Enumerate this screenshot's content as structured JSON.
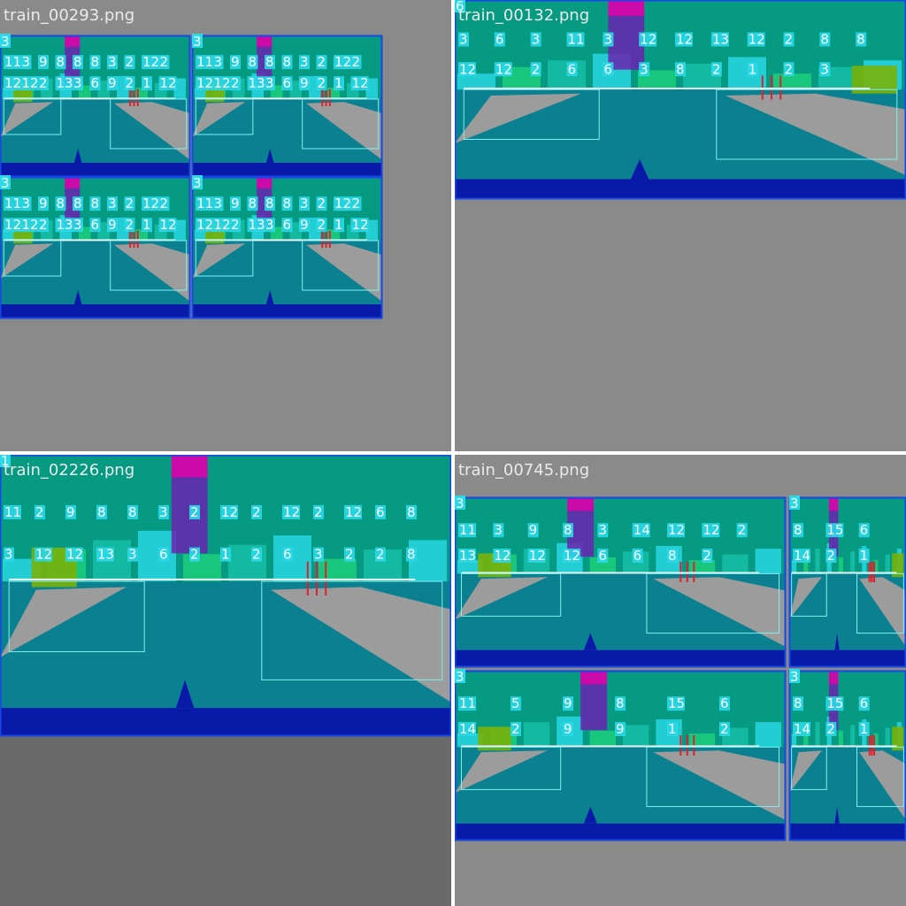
{
  "tiles": [
    {
      "filename": "train_00293.png",
      "frames": [
        {
          "tag": "3",
          "labels": [
            "11",
            "3",
            "9",
            "8",
            "8",
            "8",
            "3",
            "2",
            "12",
            "2",
            "12",
            "12",
            "2",
            "13",
            "3",
            "6",
            "9",
            "2",
            "1",
            "12"
          ]
        },
        {
          "tag": "3",
          "labels": [
            "11",
            "3",
            "9",
            "8",
            "8",
            "8",
            "3",
            "2",
            "12",
            "2",
            "12",
            "12",
            "2",
            "13",
            "3",
            "6",
            "9",
            "2",
            "1",
            "12"
          ]
        },
        {
          "tag": "3",
          "labels": [
            "11",
            "3",
            "9",
            "8",
            "8",
            "8",
            "3",
            "2",
            "12",
            "2",
            "12",
            "12",
            "2",
            "13",
            "3",
            "6",
            "9",
            "2",
            "1",
            "12"
          ]
        },
        {
          "tag": "3",
          "labels": [
            "11",
            "3",
            "9",
            "8",
            "8",
            "8",
            "3",
            "2",
            "12",
            "2",
            "12",
            "12",
            "2",
            "13",
            "3",
            "6",
            "9",
            "2",
            "1",
            "12"
          ]
        }
      ]
    },
    {
      "filename": "train_00132.png",
      "frames": [
        {
          "tag": "6",
          "labels": [
            "3",
            "6",
            "3",
            "11",
            "3",
            "12",
            "12",
            "13",
            "12",
            "2",
            "8",
            "8",
            "12",
            "12",
            "2",
            "6",
            "6",
            "3",
            "8",
            "2",
            "1",
            "2",
            "3"
          ]
        }
      ]
    },
    {
      "filename": "train_02226.png",
      "frames": [
        {
          "tag": "1",
          "labels": [
            "11",
            "2",
            "9",
            "8",
            "8",
            "3",
            "2",
            "12",
            "2",
            "12",
            "2",
            "12",
            "6",
            "8",
            "3",
            "12",
            "12",
            "13",
            "3",
            "6",
            "2",
            "1",
            "2",
            "6",
            "3",
            "2",
            "2",
            "8"
          ]
        }
      ]
    },
    {
      "filename": "train_00745.png",
      "frames": [
        {
          "tag": "3",
          "labels": [
            "11",
            "3",
            "9",
            "8",
            "3",
            "14",
            "12",
            "12",
            "2",
            "13",
            "12",
            "12",
            "12",
            "6",
            "6",
            "8",
            "2"
          ]
        },
        {
          "tag": "3",
          "labels": [
            "8",
            "15",
            "6",
            "14",
            "2",
            "1"
          ]
        },
        {
          "tag": "3",
          "labels": [
            "11",
            "5",
            "9",
            "8",
            "15",
            "6",
            "14",
            "2",
            "9",
            "9",
            "1",
            "2"
          ]
        },
        {
          "tag": "3",
          "labels": [
            "8",
            "15",
            "6",
            "14",
            "2",
            "1"
          ]
        }
      ]
    }
  ],
  "palette": {
    "sky": "#079a82",
    "water": "#0a8090",
    "sand": "#9c9c9c",
    "deep": "#0a1aa8",
    "frame": "#1747e6",
    "box_cyan": "#29d9e8",
    "box_light": "#7ef2f0",
    "purple": "#6b22b0",
    "magenta": "#cc0aaa",
    "olive": "#79b10a",
    "red": "#e0202c",
    "green": "#1ed27a"
  }
}
